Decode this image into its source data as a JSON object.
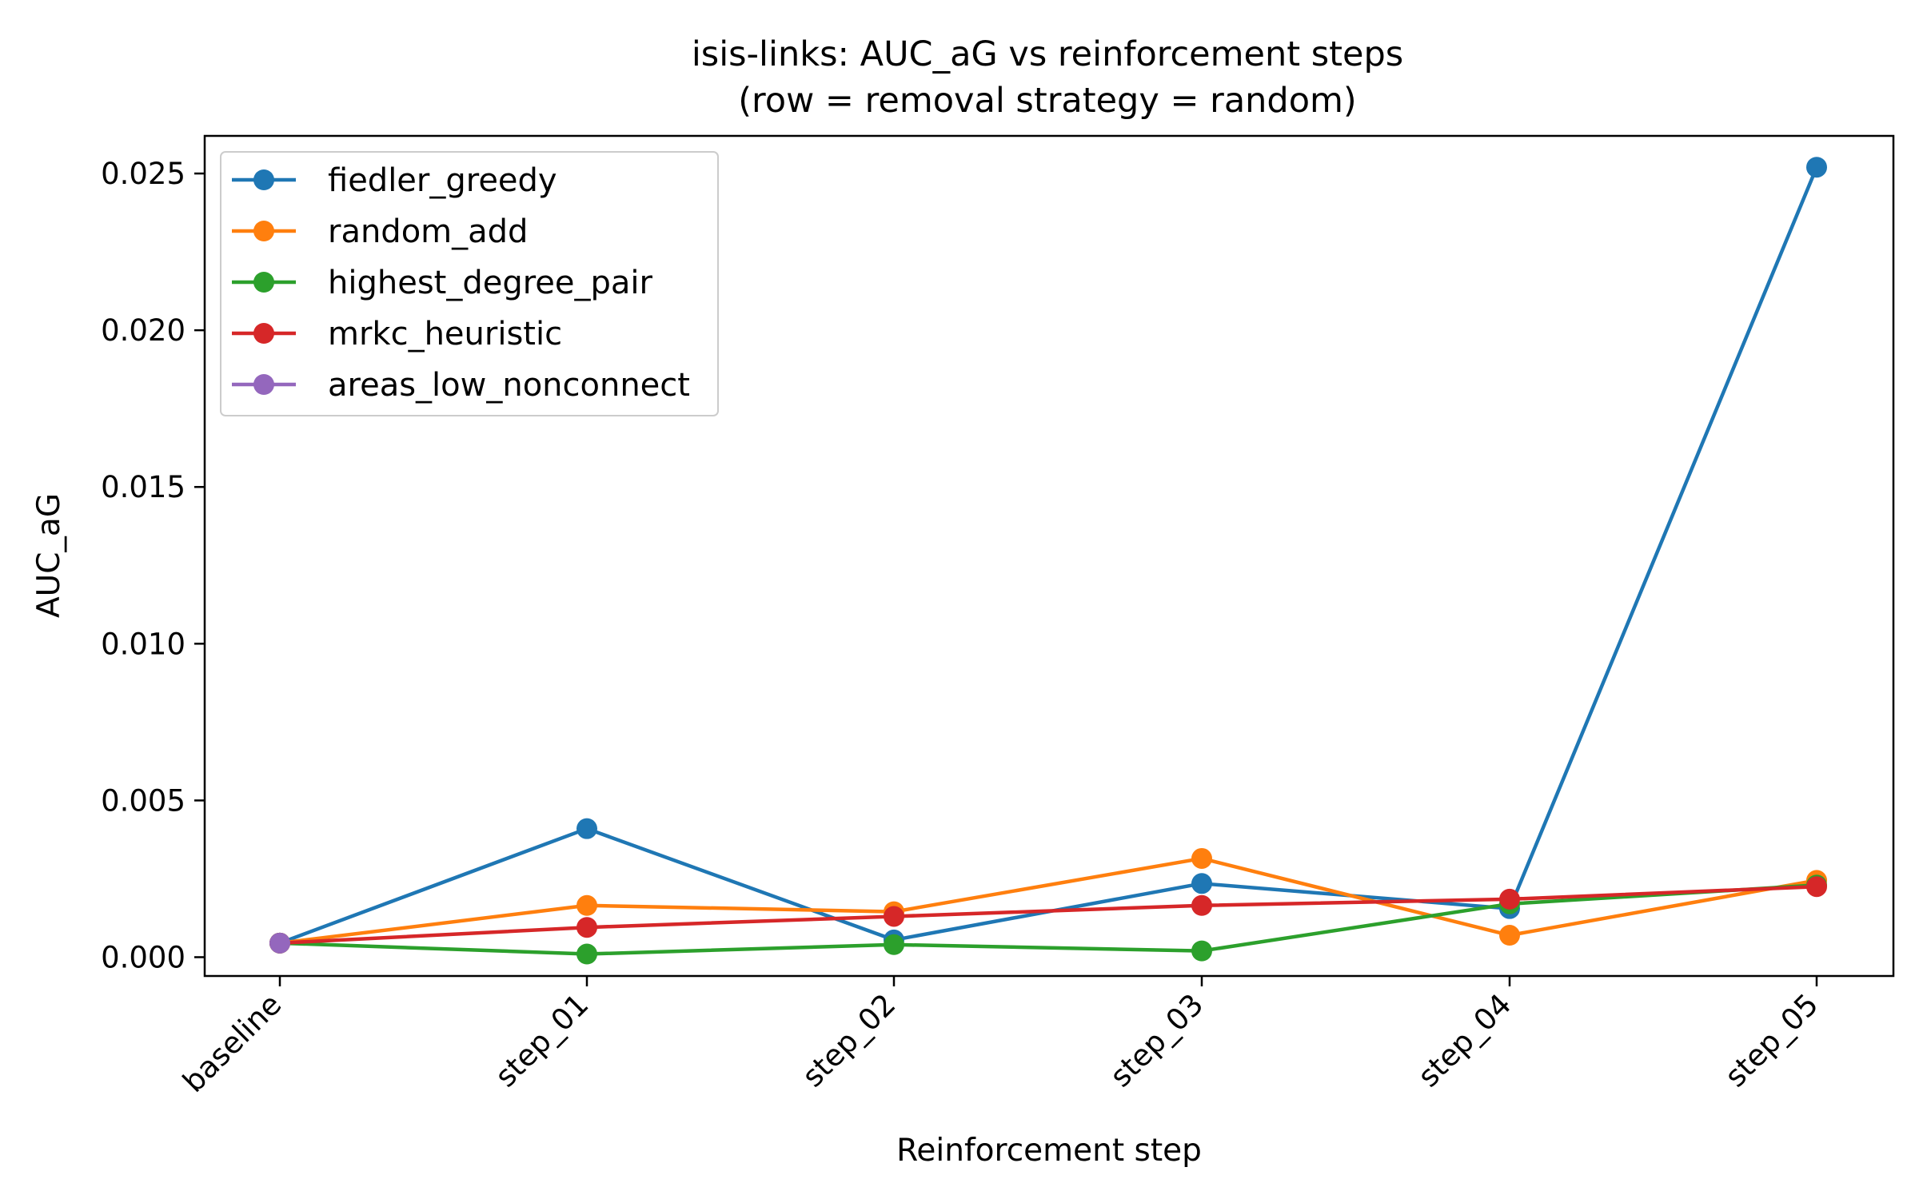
{
  "chart_data": {
    "type": "line",
    "title": "isis-links: AUC_aG vs reinforcement steps",
    "subtitle": "(row = removal strategy = random)",
    "xlabel": "Reinforcement step",
    "ylabel": "AUC_aG",
    "categories": [
      "baseline",
      "step_01",
      "step_02",
      "step_03",
      "step_04",
      "step_05"
    ],
    "ylim": [
      -0.0006,
      0.0262
    ],
    "yticks": [
      0.0,
      0.005,
      0.01,
      0.015,
      0.02,
      0.025
    ],
    "ytick_labels": [
      "0.000",
      "0.005",
      "0.010",
      "0.015",
      "0.020",
      "0.025"
    ],
    "grid": false,
    "legend_position": "top-left",
    "series": [
      {
        "name": "fiedler_greedy",
        "color": "#1f77b4",
        "values": [
          0.00045,
          0.0041,
          0.00055,
          0.00235,
          0.00155,
          0.0252
        ]
      },
      {
        "name": "random_add",
        "color": "#ff7f0e",
        "values": [
          0.00045,
          0.00165,
          0.00145,
          0.00315,
          0.0007,
          0.00245
        ]
      },
      {
        "name": "highest_degree_pair",
        "color": "#2ca02c",
        "values": [
          0.00045,
          0.0001,
          0.0004,
          0.0002,
          0.0017,
          0.0023
        ]
      },
      {
        "name": "mrkc_heuristic",
        "color": "#d62728",
        "values": [
          0.00045,
          0.00095,
          0.0013,
          0.00165,
          0.00185,
          0.00225
        ]
      },
      {
        "name": "areas_low_nonconnect",
        "color": "#9467bd",
        "values": [
          0.00045,
          null,
          null,
          null,
          null,
          null
        ]
      }
    ]
  }
}
